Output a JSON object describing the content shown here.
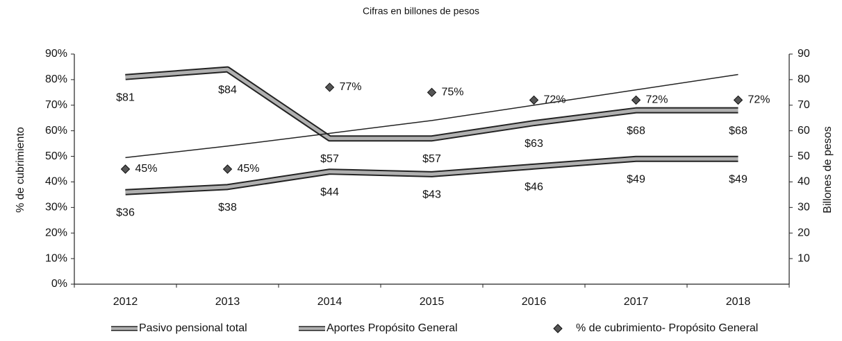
{
  "chart_data": {
    "type": "line",
    "subtitle": "Cifras en billones de pesos",
    "ylabel": "% de cubrimiento",
    "y2label": "Billones de pesos",
    "categories": [
      "2012",
      "2013",
      "2014",
      "2015",
      "2016",
      "2017",
      "2018"
    ],
    "ylim": [
      0,
      90
    ],
    "yticks": [
      {
        "value": 0,
        "label": "0%"
      },
      {
        "value": 10,
        "label": "10%"
      },
      {
        "value": 20,
        "label": "20%"
      },
      {
        "value": 30,
        "label": "30%"
      },
      {
        "value": 40,
        "label": "40%"
      },
      {
        "value": 50,
        "label": "50%"
      },
      {
        "value": 60,
        "label": "60%"
      },
      {
        "value": 70,
        "label": "70%"
      },
      {
        "value": 80,
        "label": "80%"
      },
      {
        "value": 90,
        "label": "90%"
      }
    ],
    "y2lim": [
      0,
      90
    ],
    "y2ticks": [
      10,
      20,
      30,
      40,
      50,
      60,
      70,
      80,
      90
    ],
    "series": [
      {
        "name": "Pasivo pensional total",
        "axis": "y2",
        "style": "thick",
        "color": "#b0b0b0",
        "values": [
          81,
          84,
          57,
          57,
          63,
          68,
          68
        ],
        "value_labels": [
          "$81",
          "$84",
          "$57",
          "$57",
          "$63",
          "$68",
          "$68"
        ]
      },
      {
        "name": "Aportes Propósito General",
        "axis": "y2",
        "style": "thick",
        "color": "#b0b0b0",
        "values": [
          36,
          38,
          44,
          43,
          46,
          49,
          49
        ],
        "value_labels": [
          "$36",
          "$38",
          "$44",
          "$43",
          "$46",
          "$49",
          "$49"
        ]
      },
      {
        "name": "% de cubrimiento- Propósito General",
        "axis": "y",
        "style": "markers",
        "color": "#555555",
        "values": [
          45,
          45,
          77,
          75,
          72,
          72,
          72
        ],
        "value_labels": [
          "45%",
          "45%",
          "77%",
          "75%",
          "72%",
          "72%",
          "72%"
        ]
      },
      {
        "axis": "y",
        "style": "thin",
        "color": "#222222",
        "values": [
          49.5,
          54,
          59,
          64,
          70,
          76,
          82
        ]
      }
    ]
  }
}
